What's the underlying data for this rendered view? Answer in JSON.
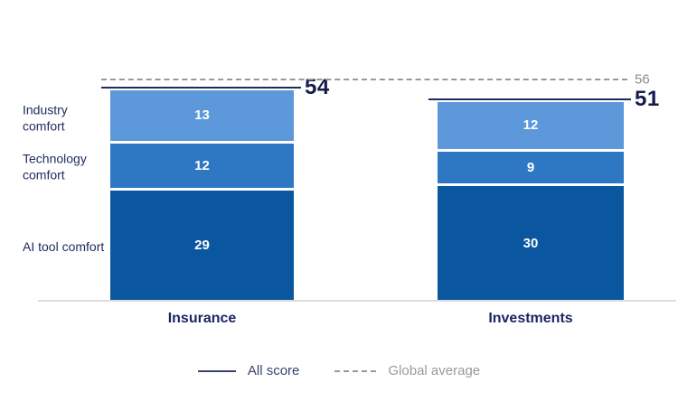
{
  "chart_data": {
    "type": "bar",
    "variant": "stacked-column",
    "categories": [
      "Insurance",
      "Investments"
    ],
    "series": [
      {
        "name": "Industry comfort",
        "values": [
          13,
          12
        ],
        "color": "#5D99DA"
      },
      {
        "name": "Technology comfort",
        "values": [
          12,
          9
        ],
        "color": "#2E78C3"
      },
      {
        "name": "AI tool comfort",
        "values": [
          29,
          30
        ],
        "color": "#0A57A0"
      }
    ],
    "totals": [
      54,
      51
    ],
    "global_average": 56,
    "ylim": [
      0,
      56
    ],
    "grid": false,
    "legend": {
      "position": "bottom",
      "items": [
        {
          "label": "All score",
          "style": "solid",
          "color": "#3A4273"
        },
        {
          "label": "Global average",
          "style": "dashed",
          "color": "#999999"
        }
      ]
    },
    "colors": {
      "score_line": "#1F2A5E",
      "total_label": "#151C4D",
      "row_label": "#1F2A5E",
      "category_label": "#1B2566",
      "global_average_label": "#8C8C8C",
      "baseline": "#DDDDDD",
      "segment_value_text": "#FFFFFF"
    }
  }
}
